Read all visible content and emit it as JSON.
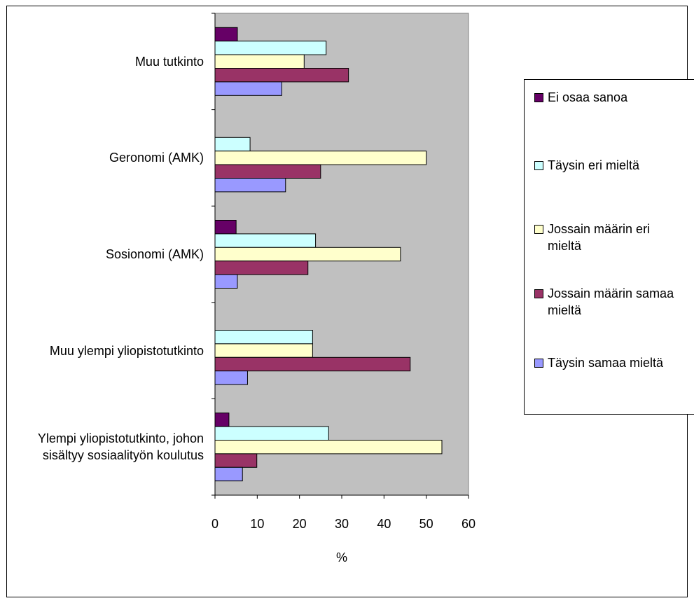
{
  "chart_data": {
    "type": "bar",
    "orientation": "horizontal",
    "title": "",
    "xlabel": "%",
    "ylabel": "",
    "xlim": [
      0,
      60
    ],
    "xticks": [
      "0",
      "10",
      "20",
      "30",
      "40",
      "50",
      "60"
    ],
    "grid": false,
    "legend_position": "right",
    "plot_background": "#c0c0c0",
    "categories": [
      "Muu tutkinto",
      "Geronomi (AMK)",
      "Sosionomi (AMK)",
      "Muu ylempi yliopistotutkinto",
      "Ylempi yliopistotutkinto, johon sisältyy sosiaalityön koulutus"
    ],
    "category_label_lines": [
      [
        "Muu tutkinto"
      ],
      [
        "Geronomi (AMK)"
      ],
      [
        "Sosionomi (AMK)"
      ],
      [
        "Muu ylempi yliopistotutkinto"
      ],
      [
        "Ylempi yliopistotutkinto, johon",
        "sisältyy sosiaalityön koulutus"
      ]
    ],
    "series": [
      {
        "name": "Ei osaa sanoa",
        "color": "#660066",
        "values": [
          5.3,
          0,
          5.0,
          0,
          3.3
        ]
      },
      {
        "name": "Täysin eri mieltä",
        "color": "#ccffff",
        "values": [
          26.3,
          8.3,
          23.8,
          23.1,
          26.9
        ]
      },
      {
        "name": "Jossain määrin eri mieltä",
        "color": "#ffffcc",
        "values": [
          21.1,
          50.0,
          43.9,
          23.1,
          53.7
        ]
      },
      {
        "name": "Jossain määrin samaa mieltä",
        "color": "#993366",
        "values": [
          31.6,
          25.0,
          22.0,
          46.2,
          9.9
        ]
      },
      {
        "name": "Täysin samaa mieltä",
        "color": "#9999ff",
        "values": [
          15.8,
          16.7,
          5.3,
          7.7,
          6.5
        ]
      }
    ],
    "legend": [
      {
        "lines": [
          "Ei osaa sanoa"
        ],
        "color": "#660066"
      },
      {
        "lines": [
          "Täysin eri mieltä"
        ],
        "color": "#ccffff"
      },
      {
        "lines": [
          "Jossain määrin eri",
          "mieltä"
        ],
        "color": "#ffffcc"
      },
      {
        "lines": [
          "Jossain määrin samaa",
          "mieltä"
        ],
        "color": "#993366"
      },
      {
        "lines": [
          "Täysin samaa mieltä"
        ],
        "color": "#9999ff"
      }
    ]
  }
}
